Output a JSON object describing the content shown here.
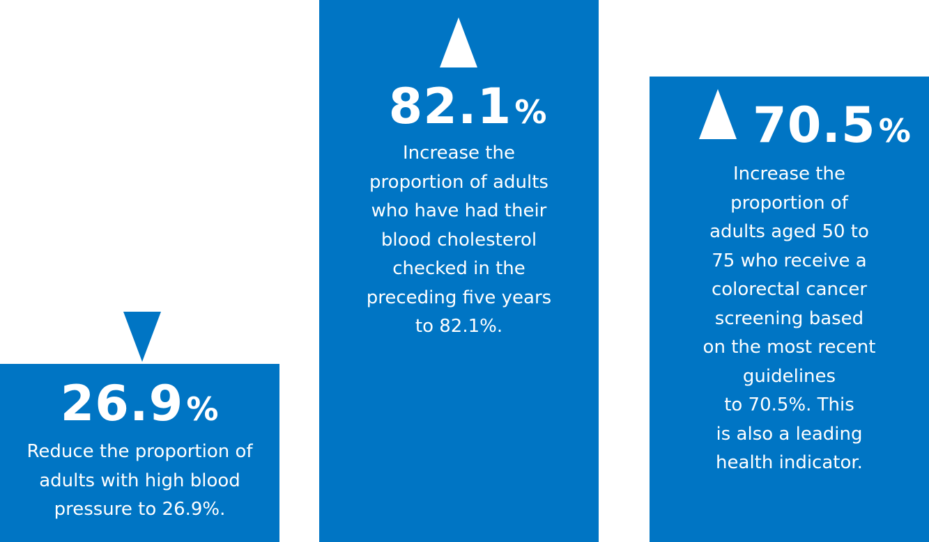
{
  "colors": {
    "panel": "#0075c4",
    "text": "#ffffff",
    "background": "#ffffff"
  },
  "panels": [
    {
      "value": "26.9",
      "unit": "%",
      "trend": "down",
      "trend_icon": "triangle-down-icon",
      "description": "Reduce the proportion of\nadults with high blood\npressure to 26.9%."
    },
    {
      "value": "82.1",
      "unit": "%",
      "trend": "up",
      "trend_icon": "triangle-up-icon",
      "description": "Increase the\nproportion of adults\nwho have had their\nblood cholesterol\nchecked in the\npreceding five years\nto 82.1%."
    },
    {
      "value": "70.5",
      "unit": "%",
      "trend": "up",
      "trend_icon": "triangle-up-icon",
      "description": "Increase the\nproportion of\nadults aged 50 to\n75 who receive a\ncolorectal cancer\nscreening based\non the most recent\nguidelines\nto 70.5%. This\nis also a leading\nhealth indicator."
    }
  ]
}
